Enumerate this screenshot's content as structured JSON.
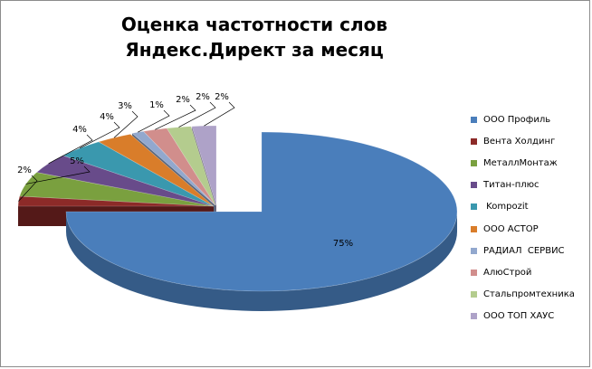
{
  "chart_data": {
    "type": "pie",
    "style": "3d-exploded",
    "title": "Оценка частотности слов Яндекс.Директ за месяц",
    "categories": [
      "ООО Профиль",
      "Вента Холдинг",
      "МеталлМонтаж",
      "Титан-плюс",
      " Kompozit",
      "ООО АСТОР",
      "РАДИАЛ  СЕРВИС",
      "АлюСтрой",
      "Стальпромтехника",
      "ООО ТОП ХАУС"
    ],
    "values": [
      75,
      2,
      5,
      4,
      4,
      3,
      1,
      2,
      2,
      2
    ],
    "data_labels": [
      "75%",
      "2%",
      "5%",
      "4%",
      "4%",
      "3%",
      "1%",
      "2%",
      "2%",
      "2%"
    ],
    "colors": [
      "#4a7ebb",
      "#8c2a28",
      "#7aa03f",
      "#684b8a",
      "#3a98ae",
      "#d97d2a",
      "#92a8ce",
      "#d18e8c",
      "#b4cc8e",
      "#aea2c8"
    ],
    "legend_position": "right"
  }
}
